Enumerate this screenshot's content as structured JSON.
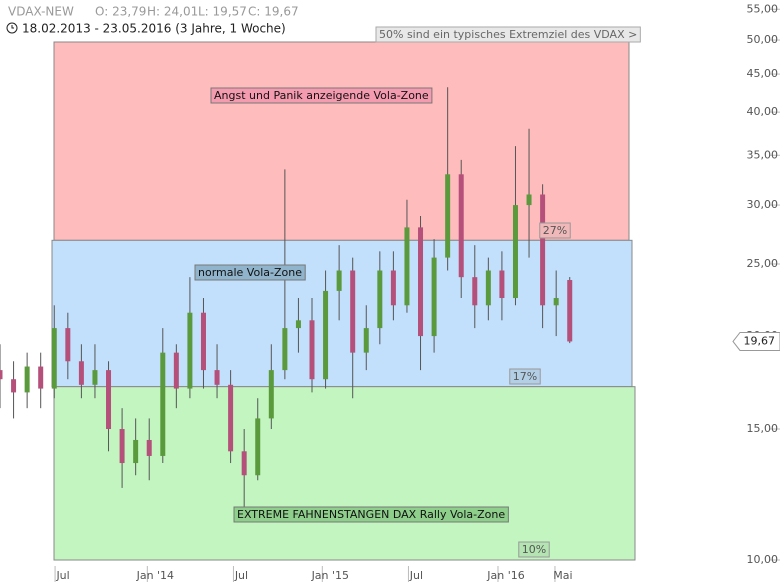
{
  "header": {
    "symbol": "VDAX-NEW",
    "open": "O: 23,79",
    "high": "H: 24,01",
    "low": "L: 19,57",
    "close": "C: 19,67",
    "range": "18.02.2013 - 23.05.2016 (3 Jahre, 1 Woche)"
  },
  "chart_data": {
    "type": "candlestick",
    "log_scale": true,
    "x": [
      0,
      2,
      4,
      6,
      8,
      10,
      12,
      14,
      16,
      18,
      20,
      22,
      24,
      26,
      28,
      30,
      32,
      34,
      36,
      38,
      40,
      42,
      44,
      46,
      48,
      50,
      52,
      54,
      56,
      58,
      60,
      62,
      64,
      66,
      68,
      70,
      72,
      74,
      76,
      78,
      80,
      82,
      84
    ],
    "open": [
      18.0,
      17.5,
      16.8,
      18.2,
      17.0,
      20.5,
      18.5,
      17.2,
      18.0,
      15.0,
      13.5,
      14.5,
      13.8,
      19.0,
      17.0,
      21.5,
      18.0,
      17.2,
      14.0,
      13.0,
      15.5,
      18.0,
      20.5,
      21.0,
      17.5,
      23.0,
      24.5,
      19.0,
      20.5,
      24.5,
      22.0,
      28.0,
      20.0,
      25.5,
      33.0,
      24.0,
      22.0,
      24.5,
      22.5,
      30.0,
      31.0,
      22.0,
      23.79
    ],
    "high": [
      19.5,
      18.5,
      19.0,
      19.0,
      22.0,
      21.5,
      19.5,
      19.5,
      18.5,
      16.0,
      15.5,
      15.5,
      20.5,
      19.5,
      24.0,
      22.5,
      19.5,
      18.0,
      15.0,
      16.5,
      19.5,
      33.5,
      22.5,
      22.5,
      24.5,
      26.5,
      25.5,
      22.0,
      26.0,
      26.0,
      30.5,
      29.0,
      27.0,
      43.2,
      34.5,
      26.5,
      25.5,
      26.0,
      36.0,
      38.0,
      32.0,
      24.5,
      24.01
    ],
    "low": [
      16.0,
      15.5,
      16.0,
      16.0,
      16.5,
      17.5,
      16.5,
      16.5,
      14.0,
      12.5,
      13.0,
      12.8,
      13.5,
      16.0,
      16.5,
      17.0,
      16.5,
      13.5,
      11.8,
      12.8,
      15.0,
      17.5,
      19.0,
      16.8,
      17.0,
      21.0,
      16.5,
      18.0,
      19.5,
      21.0,
      21.5,
      18.0,
      19.0,
      24.5,
      22.5,
      20.5,
      21.0,
      21.0,
      22.0,
      25.5,
      20.5,
      20.0,
      19.57
    ],
    "close": [
      17.5,
      16.8,
      18.2,
      17.0,
      20.5,
      18.5,
      17.2,
      18.0,
      15.0,
      13.5,
      14.5,
      13.8,
      19.0,
      17.0,
      21.5,
      18.0,
      17.2,
      14.0,
      13.0,
      15.5,
      18.0,
      20.5,
      21.0,
      17.5,
      23.0,
      24.5,
      19.0,
      20.5,
      24.5,
      22.0,
      28.0,
      20.0,
      25.5,
      33.0,
      24.0,
      22.0,
      24.5,
      22.5,
      30.0,
      31.0,
      22.0,
      22.5,
      19.67
    ],
    "last_label": "19,67",
    "up_color": "#5b9a3c",
    "down_color": "#b5507a",
    "xlim": [
      0,
      115
    ],
    "xticks": [
      {
        "value": 9.3,
        "label": "Jul"
      },
      {
        "value": 22.9,
        "label": "Jan '14"
      },
      {
        "value": 35.6,
        "label": "Jul"
      },
      {
        "value": 48.7,
        "label": "Jan '15"
      },
      {
        "value": 61.4,
        "label": "Jul"
      },
      {
        "value": 74.6,
        "label": "Jan '16"
      },
      {
        "value": 83.0,
        "label": "Mai"
      }
    ],
    "ylim": [
      9.17,
      56.6
    ],
    "yticks": [
      {
        "value": 10,
        "label": "10,00"
      },
      {
        "value": 15,
        "label": "15,00"
      },
      {
        "value": 20,
        "label": "20,00"
      },
      {
        "value": 25,
        "label": "25,00"
      },
      {
        "value": 30,
        "label": "30,00"
      },
      {
        "value": 35,
        "label": "35,00"
      },
      {
        "value": 40,
        "label": "40,00"
      },
      {
        "value": 45,
        "label": "45,00"
      },
      {
        "value": 50,
        "label": "50,00"
      },
      {
        "value": 55,
        "label": "55,00"
      }
    ],
    "zones": [
      {
        "label": "Angst und Panik anzeigende Vola-Zone",
        "percent": "27%",
        "from": 26.9,
        "to": 49.7,
        "color": "#ffbcbc"
      },
      {
        "label": "normale Vola-Zone",
        "percent": "17%",
        "from": 17.1,
        "to": 26.9,
        "color": "#c2e0fb"
      },
      {
        "label": "EXTREME FAHNENSTANGEN DAX Rally Vola-Zone",
        "percent": "10%",
        "from": 10,
        "to": 17.1,
        "color": "#c3f5c1"
      }
    ],
    "note": "50% sind ein typisches Extremziel des VDAX >"
  }
}
